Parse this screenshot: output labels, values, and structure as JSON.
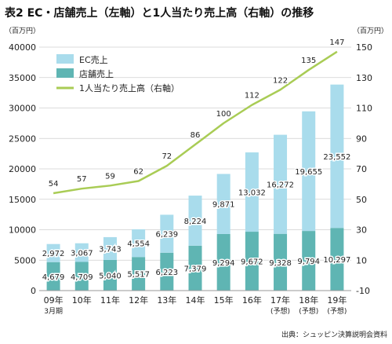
{
  "title": "表2 EC・店舗売上（左軸）と1人当たり売上高（右軸）の推移",
  "source": "出典：シュッピン決算説明会資料",
  "chart_data": {
    "type": "bar",
    "stacked": true,
    "categories": [
      "09年",
      "10年",
      "11年",
      "12年",
      "13年",
      "14年",
      "15年",
      "16年",
      "17年",
      "18年",
      "19年"
    ],
    "category_sublabels": [
      "3月期",
      "",
      "",
      "",
      "",
      "",
      "",
      "",
      "(予想)",
      "(予想)",
      "(予想)"
    ],
    "left_axis": {
      "unit": "（百万円）",
      "ylim": [
        0,
        40000
      ],
      "ticks": [
        0,
        5000,
        10000,
        15000,
        20000,
        25000,
        30000,
        35000,
        40000
      ]
    },
    "right_axis": {
      "unit": "（百万円）",
      "ylim": [
        -10,
        150
      ],
      "ticks": [
        -10,
        10,
        30,
        50,
        70,
        90,
        110,
        130,
        150
      ]
    },
    "series": [
      {
        "name": "店舗売上",
        "axis": "left",
        "values": [
          4679,
          4709,
          5040,
          5517,
          6223,
          7379,
          9294,
          9672,
          9328,
          9794,
          10297
        ],
        "color": "#5fb5b3"
      },
      {
        "name": "EC売上",
        "axis": "left",
        "values": [
          2972,
          3067,
          3743,
          4554,
          6239,
          8224,
          9871,
          13032,
          16272,
          19655,
          23552
        ],
        "color": "#a9dcec"
      },
      {
        "name": "1人当たり売上高（右軸）",
        "type": "line",
        "axis": "right",
        "values": [
          54,
          57,
          59,
          62,
          72,
          86,
          100,
          112,
          122,
          135,
          147
        ],
        "color": "#a9cc55"
      }
    ],
    "legend": {
      "position": "top-left",
      "order": [
        "EC売上",
        "店舗売上",
        "1人当たり売上高（右軸）"
      ]
    },
    "grid": {
      "horizontal": true
    }
  }
}
